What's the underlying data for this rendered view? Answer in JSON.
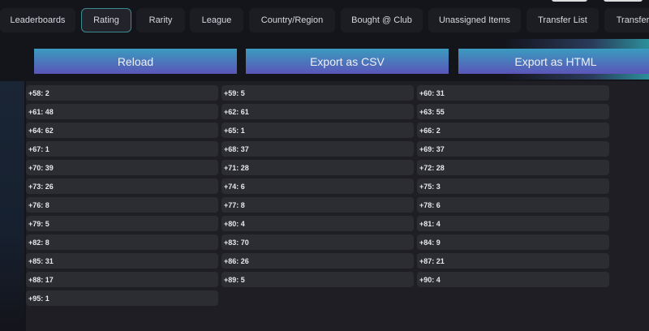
{
  "tabs": [
    "Leaderboards",
    "Rating",
    "Rarity",
    "League",
    "Country/Region",
    "Bought @ Club",
    "Unassigned Items",
    "Transfer List",
    "Transfer"
  ],
  "active_tab": "Rating",
  "buttons": {
    "reload": "Reload",
    "csv": "Export as CSV",
    "html": "Export as HTML"
  },
  "ratings": [
    "+58: 2",
    "+59: 5",
    "+60: 31",
    "+61: 48",
    "+62: 61",
    "+63: 55",
    "+64: 62",
    "+65: 1",
    "+66: 2",
    "+67: 1",
    "+68: 37",
    "+69: 37",
    "+70: 39",
    "+71: 28",
    "+72: 28",
    "+73: 26",
    "+74: 6",
    "+75: 3",
    "+76: 8",
    "+77: 8",
    "+78: 6",
    "+79: 5",
    "+80: 4",
    "+81: 4",
    "+82: 8",
    "+83: 70",
    "+84: 9",
    "+85: 31",
    "+86: 26",
    "+87: 21",
    "+88: 17",
    "+89: 5",
    "+90: 4",
    "+95: 1"
  ]
}
